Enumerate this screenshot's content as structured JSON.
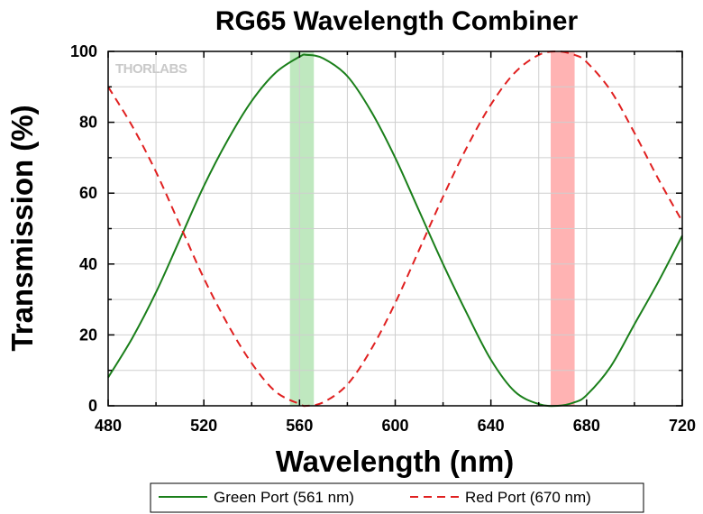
{
  "chart_data": {
    "type": "line",
    "title": "RG65 Wavelength Combiner",
    "xlabel": "Wavelength (nm)",
    "ylabel": "Transmission (%)",
    "xlim": [
      480,
      720
    ],
    "ylim": [
      0,
      100
    ],
    "x_ticks": [
      "480",
      "520",
      "560",
      "600",
      "640",
      "680",
      "720"
    ],
    "y_ticks": [
      "0",
      "20",
      "40",
      "60",
      "80",
      "100"
    ],
    "grid": true,
    "legend_position": "bottom",
    "watermark": "THORLABS",
    "bands": [
      {
        "name": "green-band",
        "x_range": [
          556,
          566
        ],
        "color": "#bfe8bf"
      },
      {
        "name": "red-band",
        "x_range": [
          665,
          675
        ],
        "color": "#ffb3b3"
      }
    ],
    "series": [
      {
        "name": "Green Port (561 nm)",
        "color": "#1a7f1a",
        "style": "solid",
        "x": [
          480,
          490,
          500,
          510,
          520,
          530,
          540,
          550,
          560,
          563,
          570,
          580,
          590,
          600,
          610,
          620,
          630,
          640,
          650,
          660,
          668,
          675,
          680,
          690,
          700,
          710,
          720
        ],
        "values": [
          8,
          19,
          32,
          47,
          62,
          75,
          86,
          94,
          98.5,
          99,
          98,
          93,
          83,
          70,
          55,
          40,
          26,
          13,
          4,
          0.5,
          0,
          1,
          3,
          11,
          23,
          35,
          48
        ]
      },
      {
        "name": "Red Port (670 nm)",
        "color": "#e02020",
        "style": "dashed",
        "x": [
          480,
          490,
          500,
          510,
          520,
          530,
          540,
          550,
          560,
          563,
          570,
          580,
          590,
          600,
          610,
          620,
          630,
          640,
          650,
          660,
          668,
          675,
          680,
          690,
          700,
          710,
          720
        ],
        "values": [
          90,
          79,
          66,
          51,
          36,
          23,
          12,
          4,
          0.5,
          0,
          1,
          6,
          16,
          29,
          44,
          59,
          73,
          85,
          94,
          99,
          100,
          99,
          97,
          89,
          77,
          64,
          52
        ]
      }
    ]
  }
}
